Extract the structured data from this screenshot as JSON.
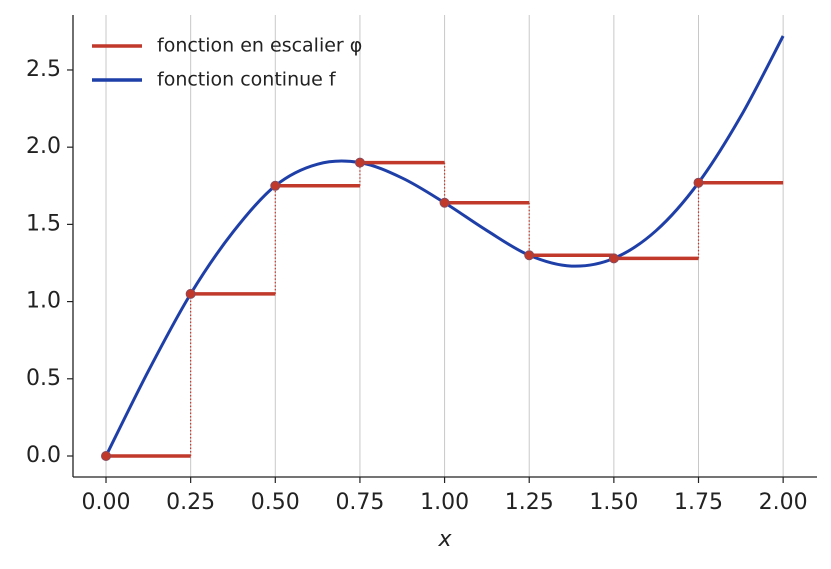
{
  "chart_data": {
    "type": "step-and-line",
    "xlabel": "x",
    "xlim": [
      -0.0975,
      2.1
    ],
    "ylim": [
      -0.136,
      2.856
    ],
    "xticks": [
      {
        "value": 0,
        "label": "0.00"
      },
      {
        "value": 0.25,
        "label": "0.25"
      },
      {
        "value": 0.5,
        "label": "0.50"
      },
      {
        "value": 0.75,
        "label": "0.75"
      },
      {
        "value": 1,
        "label": "1.00"
      },
      {
        "value": 1.25,
        "label": "1.25"
      },
      {
        "value": 1.5,
        "label": "1.50"
      },
      {
        "value": 1.75,
        "label": "1.75"
      },
      {
        "value": 2,
        "label": "2.00"
      }
    ],
    "yticks": [
      {
        "value": 0,
        "label": "0.0"
      },
      {
        "value": 0.5,
        "label": "0.5"
      },
      {
        "value": 1,
        "label": "1.0"
      },
      {
        "value": 1.5,
        "label": "1.5"
      },
      {
        "value": 2,
        "label": "2.0"
      },
      {
        "value": 2.5,
        "label": "2.5"
      }
    ],
    "grid": true,
    "legend": "upper left",
    "step": {
      "name": "fonction en escalier φ",
      "color": "#c0392b",
      "bins": [
        0,
        0.25,
        0.5,
        0.75,
        1,
        1.25,
        1.5,
        1.75,
        2
      ],
      "values": [
        0,
        1.05,
        1.75,
        1.9,
        1.64,
        1.3,
        1.28,
        1.77
      ]
    },
    "line": {
      "name": "fonction continue f",
      "color": "#1f3fa8",
      "x": [
        0,
        0.125,
        0.25,
        0.375,
        0.5,
        0.625,
        0.75,
        0.875,
        1,
        1.125,
        1.25,
        1.375,
        1.5,
        1.625,
        1.75,
        1.875,
        2
      ],
      "values": [
        0,
        0.55,
        1.05,
        1.45,
        1.75,
        1.89,
        1.9,
        1.8,
        1.64,
        1.46,
        1.3,
        1.23,
        1.28,
        1.46,
        1.77,
        2.2,
        2.72
      ]
    }
  }
}
